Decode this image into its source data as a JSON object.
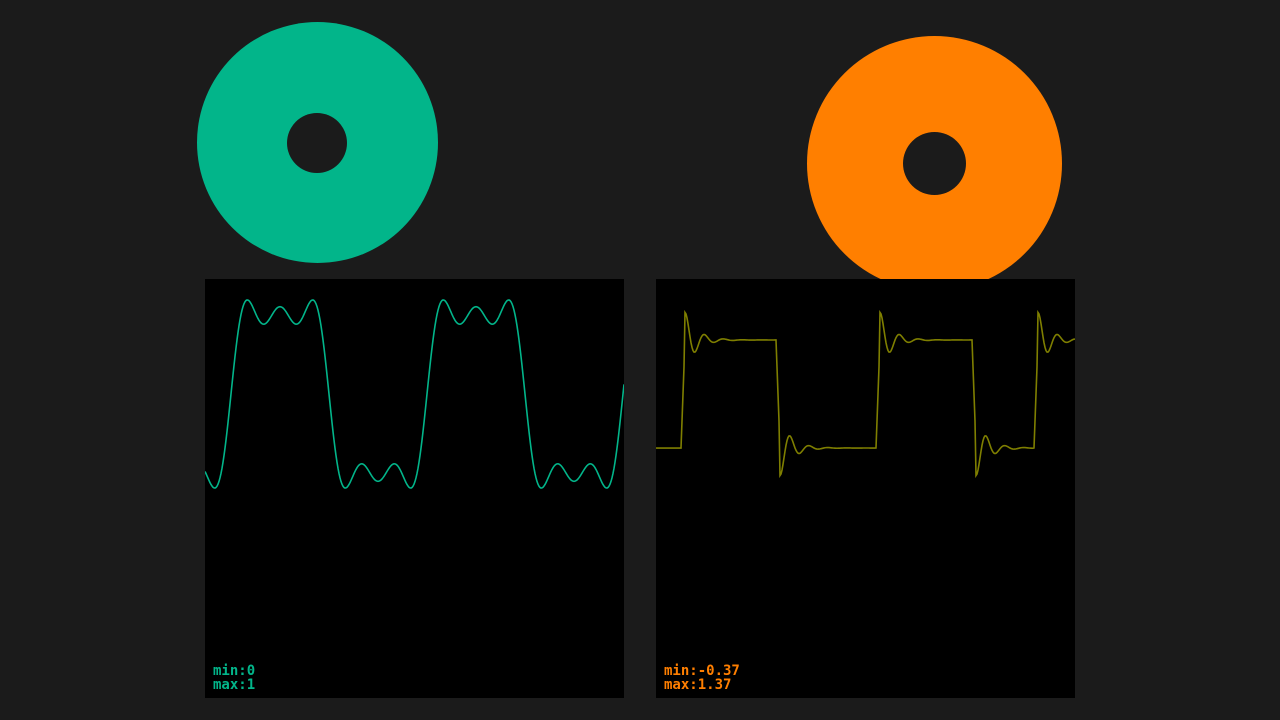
{
  "left_panel": {
    "ring_color": "#02b58a",
    "trace_color": "#02b58a",
    "trace_shape": "fourier-square-3-harmonics",
    "y_min": 0,
    "y_max": 1,
    "min_label": "min:0",
    "max_label": "max:1"
  },
  "right_panel": {
    "ring_color": "#ff7f00",
    "trace_color": "#7f7f00",
    "readout_color": "#ff7f00",
    "trace_shape": "ringing-step-response",
    "y_min": -0.37,
    "y_max": 1.37,
    "min_label": "min:-0.37",
    "max_label": "max:1.37"
  }
}
